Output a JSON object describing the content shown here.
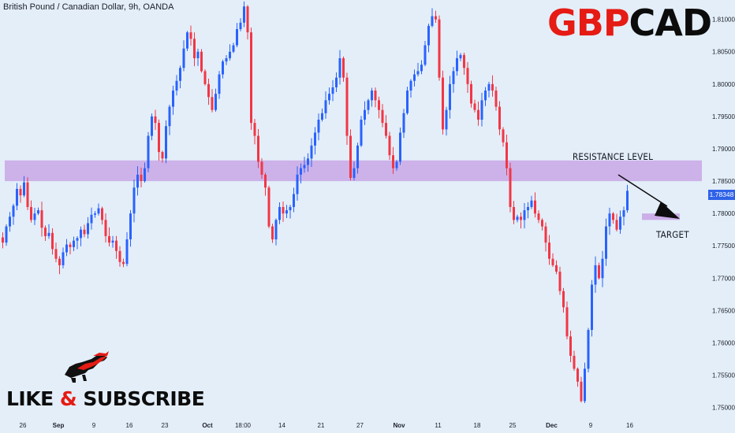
{
  "header": {
    "title": "British Pound / Canadian Dollar, 9h, OANDA"
  },
  "brand": {
    "part1": "GBP",
    "part2": "CAD"
  },
  "cta": {
    "part1": "LIKE ",
    "amp": "&",
    "part2": " SUBSCRIBE"
  },
  "annotations": {
    "resistance": "RESISTANCE LEVEL",
    "target": "TARGET"
  },
  "colors": {
    "up": "#2962ff",
    "down": "#f23645",
    "zone": "#c9a6e6",
    "background": "#e3eef8"
  },
  "chart_data": {
    "type": "candlestick",
    "symbol": "GBPCAD",
    "timeframe": "9h",
    "ylim": [
      1.7485,
      1.813
    ],
    "price_ticks": [
      "1.81000",
      "1.80500",
      "1.80000",
      "1.79500",
      "1.79000",
      "1.78500",
      "1.78000",
      "1.77500",
      "1.77000",
      "1.76500",
      "1.76000",
      "1.75500",
      "1.75000"
    ],
    "price_tick_values": [
      1.81,
      1.805,
      1.8,
      1.795,
      1.79,
      1.785,
      1.78,
      1.775,
      1.77,
      1.765,
      1.76,
      1.755,
      1.75
    ],
    "time_labels": [
      "26",
      "Sep",
      "9",
      "16",
      "23",
      "Oct",
      "18:00",
      "14",
      "21",
      "27",
      "Nov",
      "11",
      "18",
      "25",
      "Dec",
      "9",
      "16"
    ],
    "time_label_index": [
      6,
      16,
      26,
      36,
      46,
      58,
      68,
      79,
      90,
      101,
      112,
      123,
      134,
      144,
      155,
      166,
      177
    ],
    "last_price": "1.78348",
    "resistance_zone": [
      1.785,
      1.7882
    ],
    "target_zone": [
      1.779,
      1.78
    ],
    "closes": [
      1.7755,
      1.778,
      1.7795,
      1.7812,
      1.7838,
      1.7828,
      1.7848,
      1.781,
      1.779,
      1.78,
      1.7805,
      1.7778,
      1.7765,
      1.777,
      1.7745,
      1.773,
      1.772,
      1.774,
      1.7752,
      1.7748,
      1.7758,
      1.7762,
      1.7775,
      1.7768,
      1.7785,
      1.7798,
      1.78,
      1.7808,
      1.779,
      1.7765,
      1.7755,
      1.7758,
      1.7742,
      1.7725,
      1.7722,
      1.776,
      1.78,
      1.784,
      1.786,
      1.785,
      1.787,
      1.792,
      1.795,
      1.794,
      1.7895,
      1.7885,
      1.7935,
      1.7965,
      1.799,
      1.8005,
      1.8025,
      1.8055,
      1.808,
      1.807,
      1.804,
      1.805,
      1.802,
      1.8,
      1.798,
      1.796,
      1.7985,
      1.8015,
      1.8035,
      1.804,
      1.805,
      1.806,
      1.8085,
      1.8095,
      1.812,
      1.808,
      1.794,
      1.792,
      1.788,
      1.786,
      1.784,
      1.778,
      1.776,
      1.779,
      1.781,
      1.78,
      1.7805,
      1.781,
      1.783,
      1.786,
      1.787,
      1.7875,
      1.7885,
      1.7905,
      1.7925,
      1.7945,
      1.7955,
      1.7975,
      1.7985,
      1.7995,
      1.801,
      1.804,
      1.801,
      1.792,
      1.7855,
      1.787,
      1.7905,
      1.7945,
      1.796,
      1.7975,
      1.799,
      1.7975,
      1.796,
      1.794,
      1.792,
      1.789,
      1.787,
      1.788,
      1.7925,
      1.7955,
      1.799,
      1.8005,
      1.8015,
      1.802,
      1.803,
      1.806,
      1.809,
      1.8105,
      1.81,
      1.801,
      1.793,
      1.796,
      1.8,
      1.802,
      1.804,
      1.8045,
      1.8025,
      1.8,
      1.797,
      1.796,
      1.7945,
      1.7975,
      1.799,
      1.8,
      1.799,
      1.7965,
      1.793,
      1.791,
      1.787,
      1.781,
      1.779,
      1.7795,
      1.779,
      1.7805,
      1.781,
      1.782,
      1.78,
      1.779,
      1.778,
      1.7755,
      1.773,
      1.772,
      1.771,
      1.768,
      1.7655,
      1.761,
      1.758,
      1.756,
      1.754,
      1.751,
      1.756,
      1.762,
      1.769,
      1.772,
      1.77,
      1.773,
      1.778,
      1.78,
      1.779,
      1.7775,
      1.7795,
      1.7805,
      1.7835
    ]
  }
}
